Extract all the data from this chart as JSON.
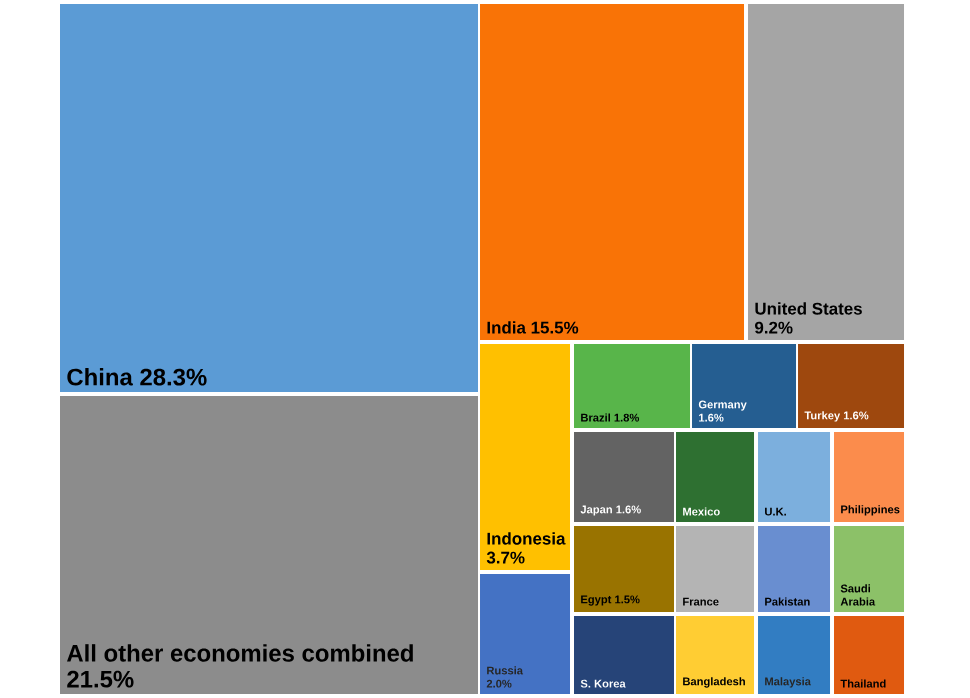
{
  "chart_data": {
    "type": "other",
    "categories": [
      "China",
      "All other economies combined",
      "India",
      "United States",
      "Indonesia",
      "Russia",
      "Brazil",
      "Germany",
      "Turkey",
      "Japan",
      "Mexico",
      "U.K.",
      "Philippines",
      "Egypt",
      "France",
      "Pakistan",
      "Saudi Arabia",
      "S. Korea",
      "Bangladesh",
      "Malaysia",
      "Thailand"
    ],
    "values": [
      28.3,
      21.5,
      15.5,
      9.2,
      3.7,
      2.0,
      1.8,
      1.6,
      1.6,
      1.6,
      null,
      null,
      null,
      1.5,
      null,
      null,
      null,
      null,
      null,
      null,
      null
    ],
    "value_labels": [
      "28.3%",
      "21.5%",
      "15.5%",
      "9.2%",
      "3.7%",
      "2.0%",
      "1.8%",
      "1.6%",
      "1.6%",
      "1.6%",
      null,
      null,
      null,
      "1.5%",
      null,
      null,
      null,
      null,
      null,
      null,
      null
    ],
    "colors": [
      "#5b9bd5",
      "#8c8c8c",
      "#f97306",
      "#a5a5a5",
      "#ffc000",
      "#4472c4",
      "#58b54a",
      "#255e91",
      "#9e480e",
      "#636363",
      "#2e7031",
      "#7cafdd",
      "#fb8c4c",
      "#997300",
      "#b4b4b4",
      "#698ed0",
      "#8cc168",
      "#264478",
      "#ffcd33",
      "#327dc2",
      "#e05a10"
    ]
  }
}
